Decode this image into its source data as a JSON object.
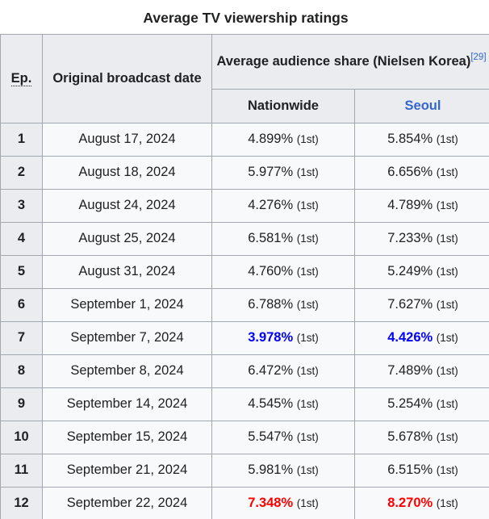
{
  "table": {
    "caption": "Average TV viewership ratings",
    "header": {
      "ep": "Ep.",
      "date": "Original broadcast date",
      "share_group": "Average audience share (Nielsen Korea)",
      "share_ref": "[29]",
      "nationwide": "Nationwide",
      "seoul": "Seoul"
    },
    "rows": [
      {
        "ep": "1",
        "date": "August 17, 2024",
        "nationwide": "4.899%",
        "nationwide_note": "(1st)",
        "seoul": "5.854%",
        "seoul_note": "(1st)",
        "highlight": null
      },
      {
        "ep": "2",
        "date": "August 18, 2024",
        "nationwide": "5.977%",
        "nationwide_note": "(1st)",
        "seoul": "6.656%",
        "seoul_note": "(1st)",
        "highlight": null
      },
      {
        "ep": "3",
        "date": "August 24, 2024",
        "nationwide": "4.276%",
        "nationwide_note": "(1st)",
        "seoul": "4.789%",
        "seoul_note": "(1st)",
        "highlight": null
      },
      {
        "ep": "4",
        "date": "August 25, 2024",
        "nationwide": "6.581%",
        "nationwide_note": "(1st)",
        "seoul": "7.233%",
        "seoul_note": "(1st)",
        "highlight": null
      },
      {
        "ep": "5",
        "date": "August 31, 2024",
        "nationwide": "4.760%",
        "nationwide_note": "(1st)",
        "seoul": "5.249%",
        "seoul_note": "(1st)",
        "highlight": null
      },
      {
        "ep": "6",
        "date": "September 1, 2024",
        "nationwide": "6.788%",
        "nationwide_note": "(1st)",
        "seoul": "7.627%",
        "seoul_note": "(1st)",
        "highlight": null
      },
      {
        "ep": "7",
        "date": "September 7, 2024",
        "nationwide": "3.978%",
        "nationwide_note": "(1st)",
        "seoul": "4.426%",
        "seoul_note": "(1st)",
        "highlight": "lowest"
      },
      {
        "ep": "8",
        "date": "September 8, 2024",
        "nationwide": "6.472%",
        "nationwide_note": "(1st)",
        "seoul": "7.489%",
        "seoul_note": "(1st)",
        "highlight": null
      },
      {
        "ep": "9",
        "date": "September 14, 2024",
        "nationwide": "4.545%",
        "nationwide_note": "(1st)",
        "seoul": "5.254%",
        "seoul_note": "(1st)",
        "highlight": null
      },
      {
        "ep": "10",
        "date": "September 15, 2024",
        "nationwide": "5.547%",
        "nationwide_note": "(1st)",
        "seoul": "5.678%",
        "seoul_note": "(1st)",
        "highlight": null
      },
      {
        "ep": "11",
        "date": "September 21, 2024",
        "nationwide": "5.981%",
        "nationwide_note": "(1st)",
        "seoul": "6.515%",
        "seoul_note": "(1st)",
        "highlight": null
      },
      {
        "ep": "12",
        "date": "September 22, 2024",
        "nationwide": "7.348%",
        "nationwide_note": "(1st)",
        "seoul": "8.270%",
        "seoul_note": "(1st)",
        "highlight": "highest"
      }
    ],
    "colors": {
      "text": "#202122",
      "border": "#a2a9b1",
      "header_bg": "#eaecf0",
      "cell_bg": "#f8f9fa",
      "link_blue": "#3366cc",
      "lowest_blue": "#0000ff",
      "highest_red": "#ff0000"
    }
  }
}
